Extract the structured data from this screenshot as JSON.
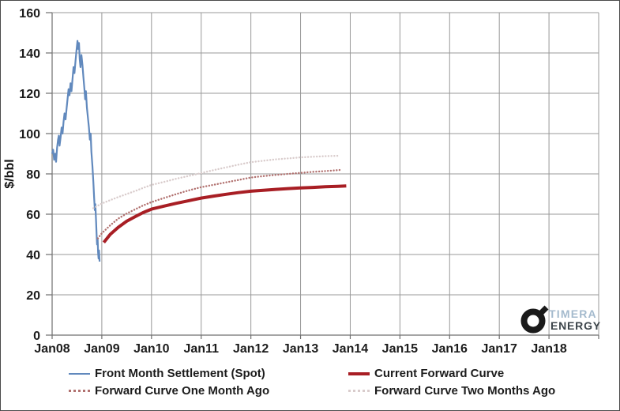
{
  "chart_data": {
    "type": "line",
    "title": "",
    "xlabel": "",
    "ylabel": "$/bbl",
    "ylim": [
      0,
      160
    ],
    "y_ticks": [
      0,
      20,
      40,
      60,
      80,
      100,
      120,
      140,
      160
    ],
    "x_ticks": [
      "Jan08",
      "Jan09",
      "Jan10",
      "Jan11",
      "Jan12",
      "Jan13",
      "Jan14",
      "Jan15",
      "Jan16",
      "Jan17",
      "Jan18"
    ],
    "x_tick_years": [
      2008,
      2009,
      2010,
      2011,
      2012,
      2013,
      2014,
      2015,
      2016,
      2017,
      2018
    ],
    "x_axis_end_year": 2019,
    "grid": true,
    "grid_color": "#989898",
    "axis_color": "#6f6f6f",
    "legend_position": "bottom",
    "series": [
      {
        "id": "spot",
        "name": "Front Month Settlement (Spot)",
        "color": "#6189BD",
        "style": "solid",
        "width": 2.2,
        "x": [
          2008.0,
          2008.02,
          2008.04,
          2008.06,
          2008.08,
          2008.1,
          2008.12,
          2008.135,
          2008.15,
          2008.17,
          2008.19,
          2008.21,
          2008.23,
          2008.25,
          2008.27,
          2008.29,
          2008.31,
          2008.33,
          2008.35,
          2008.37,
          2008.39,
          2008.41,
          2008.43,
          2008.45,
          2008.47,
          2008.49,
          2008.51,
          2008.525,
          2008.54,
          2008.555,
          2008.57,
          2008.59,
          2008.61,
          2008.63,
          2008.65,
          2008.665,
          2008.68,
          2008.7,
          2008.72,
          2008.74,
          2008.76,
          2008.775,
          2008.79,
          2008.81,
          2008.83,
          2008.845,
          2008.86,
          2008.87,
          2008.885,
          2008.895,
          2008.905,
          2008.915,
          2008.925,
          2008.935,
          2008.945,
          2008.955
        ],
        "y": [
          90,
          92,
          87,
          90,
          86,
          93,
          97,
          99,
          94,
          98,
          103,
          100,
          106,
          110,
          107,
          112,
          117,
          122,
          119,
          125,
          121,
          127,
          133,
          130,
          136,
          141,
          146,
          142,
          145,
          137,
          133,
          139,
          134,
          128,
          122,
          117,
          121,
          113,
          108,
          103,
          97,
          100,
          91,
          84,
          76,
          68,
          62,
          65,
          56,
          50,
          45,
          48,
          41,
          38,
          42,
          36.5
        ]
      },
      {
        "id": "current",
        "name": "Current Forward Curve",
        "color": "#A81E24",
        "style": "solid",
        "width": 4,
        "x": [
          2009.04,
          2009.17,
          2009.33,
          2009.5,
          2009.67,
          2009.83,
          2010.0,
          2010.25,
          2010.5,
          2010.75,
          2011.0,
          2011.25,
          2011.5,
          2011.75,
          2012.0,
          2012.25,
          2012.5,
          2012.75,
          2013.0,
          2013.25,
          2013.5,
          2013.75,
          2013.92
        ],
        "y": [
          46,
          50,
          53.5,
          56.5,
          58.8,
          60.8,
          62.5,
          64,
          65.4,
          66.7,
          68,
          69,
          69.9,
          70.7,
          71.4,
          71.9,
          72.3,
          72.7,
          73,
          73.3,
          73.6,
          73.8,
          74
        ]
      },
      {
        "id": "one-month-ago",
        "name": "Forward Curve One Month Ago",
        "color": "#B1716F",
        "style": "dotted",
        "width": 2.4,
        "x": [
          2008.92,
          2009.0,
          2009.17,
          2009.33,
          2009.5,
          2009.67,
          2009.83,
          2010.0,
          2010.25,
          2010.5,
          2010.75,
          2011.0,
          2011.25,
          2011.5,
          2011.75,
          2012.0,
          2012.25,
          2012.5,
          2012.75,
          2013.0,
          2013.25,
          2013.5,
          2013.83
        ],
        "y": [
          48,
          50.5,
          54.5,
          57.8,
          60.3,
          62.4,
          64.3,
          66,
          68,
          70,
          71.8,
          73.4,
          74.6,
          75.8,
          77,
          78.2,
          78.9,
          79.5,
          80,
          80.5,
          81,
          81.4,
          82
        ]
      },
      {
        "id": "two-months-ago",
        "name": "Forward Curve Two Months Ago",
        "color": "#D9CCCC",
        "style": "dotted",
        "width": 2.4,
        "x": [
          2008.83,
          2009.0,
          2009.17,
          2009.33,
          2009.5,
          2009.67,
          2009.83,
          2010.0,
          2010.25,
          2010.5,
          2010.75,
          2011.0,
          2011.25,
          2011.5,
          2011.75,
          2012.0,
          2012.25,
          2012.5,
          2012.75,
          2013.0,
          2013.25,
          2013.5,
          2013.75
        ],
        "y": [
          63,
          65.3,
          67,
          68.5,
          70,
          71.5,
          73,
          74.5,
          76,
          77.6,
          79,
          80.4,
          81.9,
          83.2,
          84.6,
          85.8,
          86.5,
          87.2,
          87.7,
          88.2,
          88.5,
          88.8,
          89
        ]
      }
    ]
  },
  "logo": {
    "line1": "TIMERA",
    "line2": "ENERGY",
    "line1_color": "#A4BACD",
    "line2_color": "#3B4349",
    "symbol_color": "#1a1a1a"
  }
}
